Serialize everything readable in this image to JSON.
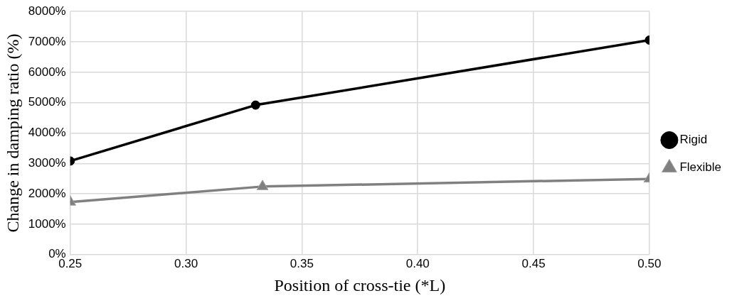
{
  "chart_data": {
    "type": "line",
    "xlabel": "Position of cross-tie (*L)",
    "ylabel": "Change in damping ratio (%)",
    "series": [
      {
        "name": "Rigid",
        "color": "#000000",
        "marker": "circle",
        "x": [
          0.25,
          0.33,
          0.5
        ],
        "values": [
          3080,
          4920,
          7060
        ]
      },
      {
        "name": "Flexible",
        "color": "#808080",
        "marker": "triangle",
        "x": [
          0.25,
          0.333,
          0.5
        ],
        "values": [
          1730,
          2240,
          2490
        ]
      }
    ],
    "xlim": [
      0.25,
      0.5
    ],
    "xticks": [
      {
        "value": 0.25,
        "label": "0.25"
      },
      {
        "value": 0.3,
        "label": "0.30"
      },
      {
        "value": 0.35,
        "label": "0.35"
      },
      {
        "value": 0.4,
        "label": "0.40"
      },
      {
        "value": 0.45,
        "label": "0.45"
      },
      {
        "value": 0.5,
        "label": "0.50"
      }
    ],
    "ylim": [
      0,
      8000
    ],
    "yticks": [
      {
        "value": 0,
        "label": "0%"
      },
      {
        "value": 1000,
        "label": "1000%"
      },
      {
        "value": 2000,
        "label": "2000%"
      },
      {
        "value": 3000,
        "label": "3000%"
      },
      {
        "value": 4000,
        "label": "4000%"
      },
      {
        "value": 5000,
        "label": "5000%"
      },
      {
        "value": 6000,
        "label": "6000%"
      },
      {
        "value": 7000,
        "label": "7000%"
      },
      {
        "value": 8000,
        "label": "8000%"
      }
    ],
    "grid": true,
    "legend": "right"
  }
}
